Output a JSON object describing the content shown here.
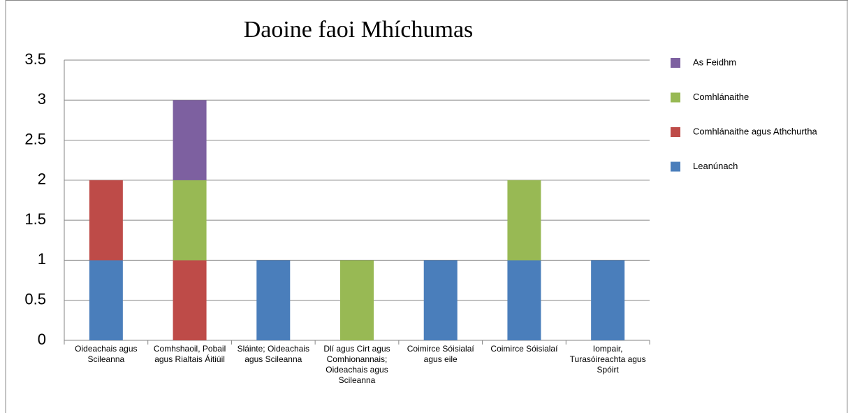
{
  "chart_data": {
    "type": "stacked_bar",
    "title": "Daoine faoi Mhíchumas",
    "categories": [
      "Oideachais agus Scileanna",
      "Comhshaoil, Pobail agus Rialtais Áitiúil",
      "Sláinte; Oideachais agus Scileanna",
      "Dlí agus Cirt agus Comhionannais; Oideachais agus Scileanna",
      "Coimirce Sóisialaí agus eile",
      "Coimirce Sóisialaí",
      "Iompair, Turasóireachta agus Spóirt"
    ],
    "series": [
      {
        "name": "Leanúnach",
        "color": "#4a7ebb",
        "values": [
          1,
          0,
          1,
          0,
          1,
          1,
          1
        ]
      },
      {
        "name": "Comhlánaithe agus Athchurtha",
        "color": "#be4b48",
        "values": [
          1,
          1,
          0,
          0,
          0,
          0,
          0
        ]
      },
      {
        "name": "Comhlánaithe",
        "color": "#98b954",
        "values": [
          0,
          1,
          0,
          1,
          0,
          1,
          0
        ]
      },
      {
        "name": "As Feidhm",
        "color": "#7d60a0",
        "values": [
          0,
          1,
          0,
          0,
          0,
          0,
          0
        ]
      }
    ],
    "ylim": [
      0,
      3.5
    ],
    "yticks": [
      0,
      0.5,
      1,
      1.5,
      2,
      2.5,
      3,
      3.5
    ],
    "grid": true,
    "legend": "right"
  }
}
